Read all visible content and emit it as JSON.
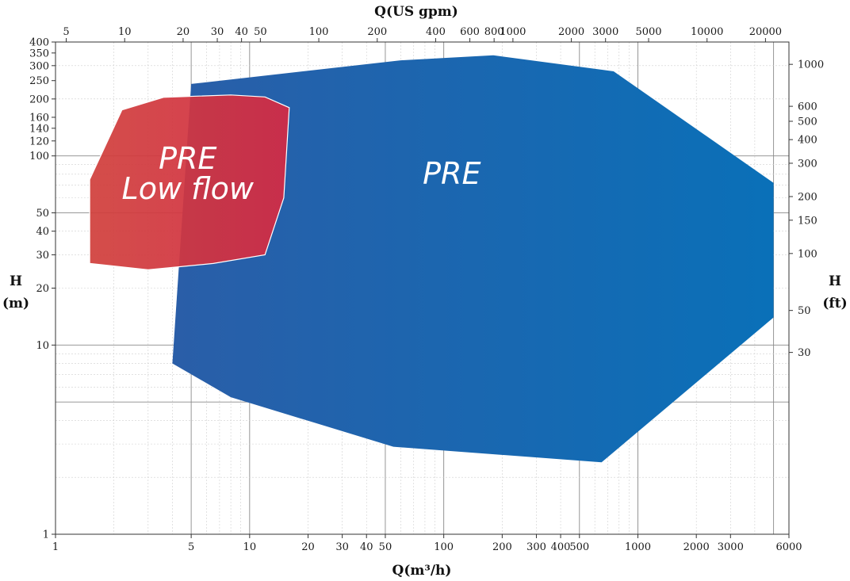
{
  "chart_data": {
    "type": "area",
    "title": "",
    "x_scale": "log",
    "y_scale": "log",
    "xlabel": "Q(m³/h)",
    "ylabel_line1": "H",
    "ylabel_line2": "(m)",
    "x2label": "Q(US gpm)",
    "y2label_line1": "H",
    "y2label_line2": "(ft)",
    "xlim": [
      1,
      6000
    ],
    "ylim": [
      1,
      400
    ],
    "x2lim": [
      4.4,
      26400
    ],
    "y2lim": [
      3.28,
      1312
    ],
    "x_ticks": [
      1,
      5,
      10,
      20,
      30,
      40,
      50,
      100,
      200,
      300,
      400,
      500,
      1000,
      2000,
      3000,
      6000
    ],
    "y_ticks": [
      1,
      10,
      20,
      30,
      40,
      50,
      100,
      120,
      140,
      160,
      200,
      250,
      300,
      350,
      400
    ],
    "x2_ticks": [
      5,
      10,
      20,
      30,
      40,
      50,
      100,
      200,
      400,
      600,
      800,
      1000,
      2000,
      3000,
      5000,
      10000,
      20000
    ],
    "y2_ticks": [
      30,
      50,
      100,
      150,
      200,
      300,
      400,
      500,
      600,
      1000
    ],
    "grid": true,
    "series": [
      {
        "name": "PRE",
        "label_lines": [
          "PRE"
        ],
        "label_at": {
          "x": 110,
          "y": 80
        },
        "color_start": "#2a5ea8",
        "color_end": "#0a70b8",
        "polygon": [
          {
            "x": 5,
            "y": 240
          },
          {
            "x": 60,
            "y": 320
          },
          {
            "x": 180,
            "y": 340
          },
          {
            "x": 750,
            "y": 280
          },
          {
            "x": 5000,
            "y": 72
          },
          {
            "x": 5000,
            "y": 14
          },
          {
            "x": 650,
            "y": 2.4
          },
          {
            "x": 55,
            "y": 2.9
          },
          {
            "x": 8,
            "y": 5.3
          },
          {
            "x": 4,
            "y": 8
          }
        ]
      },
      {
        "name": "PRE Low flow",
        "label_lines": [
          "PRE",
          "Low flow"
        ],
        "label_at": {
          "x": 4.8,
          "y": 80
        },
        "color_start": "#d0403c",
        "color_end": "#d42a44",
        "polygon": [
          {
            "x": 2.2,
            "y": 175
          },
          {
            "x": 3.6,
            "y": 204
          },
          {
            "x": 8,
            "y": 210
          },
          {
            "x": 12,
            "y": 205
          },
          {
            "x": 16,
            "y": 180
          },
          {
            "x": 15,
            "y": 60
          },
          {
            "x": 12,
            "y": 30
          },
          {
            "x": 6.5,
            "y": 27
          },
          {
            "x": 3,
            "y": 25
          },
          {
            "x": 1.5,
            "y": 27
          },
          {
            "x": 1.5,
            "y": 75
          }
        ]
      }
    ]
  }
}
